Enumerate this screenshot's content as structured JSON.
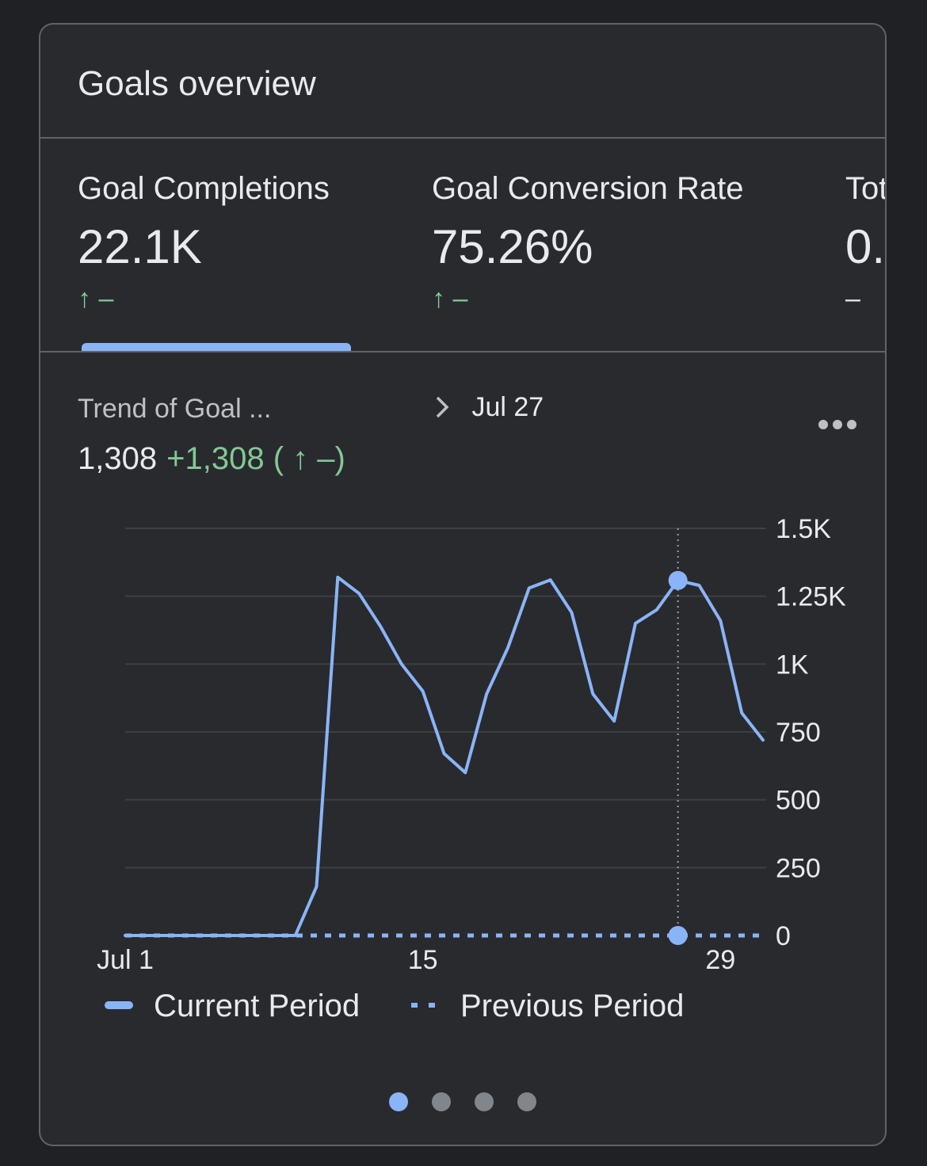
{
  "card": {
    "title": "Goals overview"
  },
  "metrics": [
    {
      "label": "Goal Completions",
      "value": "22.1K",
      "arrow": "↑",
      "delta": "–"
    },
    {
      "label": "Goal Conversion Rate",
      "value": "75.26%",
      "arrow": "↑",
      "delta": "–"
    },
    {
      "label": "Tot",
      "value": "0.",
      "arrow": "",
      "delta": "–"
    }
  ],
  "trend": {
    "title": "Trend of Goal ...",
    "hover_date": "Jul 27",
    "value": "1,308",
    "change": "+1,308",
    "change_detail": "( ↑ –)"
  },
  "icons": {
    "more": "more-horizontal-icon",
    "chevron": "chevron-right-icon"
  },
  "colors": {
    "accent": "#8ab4f8",
    "positive": "#81c995"
  },
  "chart_data": {
    "type": "line",
    "x": [
      1,
      2,
      3,
      4,
      5,
      6,
      7,
      8,
      9,
      10,
      11,
      12,
      13,
      14,
      15,
      16,
      17,
      18,
      19,
      20,
      21,
      22,
      23,
      24,
      25,
      26,
      27,
      28,
      29,
      30,
      31
    ],
    "x_ticks": [
      1,
      15,
      29
    ],
    "x_tick_labels": [
      "Jul 1",
      "15",
      "29"
    ],
    "y_ticks": [
      0,
      250,
      500,
      750,
      1000,
      1250,
      1500
    ],
    "y_tick_labels": [
      "0",
      "250",
      "500",
      "750",
      "1K",
      "1.25K",
      "1.5K"
    ],
    "ylim": [
      0,
      1500
    ],
    "grid": true,
    "legend_position": "bottom",
    "highlight_x": 27,
    "series": [
      {
        "name": "Current Period",
        "style": "solid",
        "color": "#8ab4f8",
        "values": [
          0,
          0,
          0,
          0,
          0,
          0,
          0,
          0,
          0,
          180,
          1320,
          1260,
          1140,
          1000,
          900,
          670,
          600,
          890,
          1060,
          1280,
          1310,
          1190,
          890,
          790,
          1150,
          1200,
          1308,
          1290,
          1160,
          820,
          720
        ]
      },
      {
        "name": "Previous Period",
        "style": "dotted",
        "color": "#8ab4f8",
        "values": [
          0,
          0,
          0,
          0,
          0,
          0,
          0,
          0,
          0,
          0,
          0,
          0,
          0,
          0,
          0,
          0,
          0,
          0,
          0,
          0,
          0,
          0,
          0,
          0,
          0,
          0,
          0,
          0,
          0,
          0,
          0
        ]
      }
    ]
  },
  "pager": {
    "count": 4,
    "active": 0
  }
}
